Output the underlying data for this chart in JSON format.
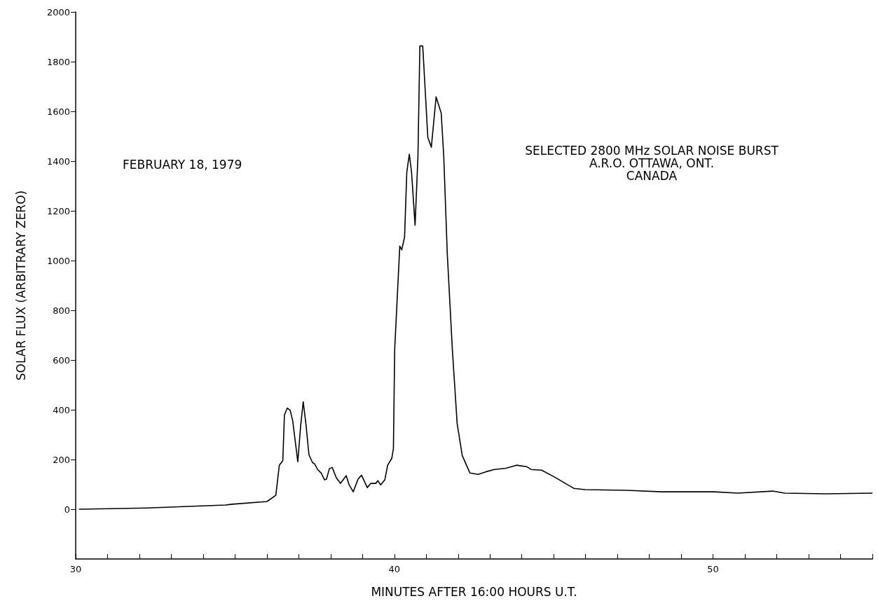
{
  "chart_data": {
    "type": "line",
    "xlabel": "MINUTES AFTER 16:00 HOURS U.T.",
    "ylabel": "SOLAR FLUX (ARBITRARY ZERO)",
    "annotations": [
      "FEBRUARY 18, 1979",
      "SELECTED 2800 MHz SOLAR NOISE BURST\nA.R.O. OTTAWA, ONT.\nCANADA"
    ],
    "xlim": [
      30,
      55
    ],
    "ylim": [
      -200,
      2000
    ],
    "xticks": [
      30,
      {
        "value": 31,
        "label": null
      },
      {
        "value": 32,
        "label": null
      },
      {
        "value": 33,
        "label": null
      },
      {
        "value": 34,
        "label": null
      },
      {
        "value": 35,
        "label": null
      },
      {
        "value": 36,
        "label": null
      },
      {
        "value": 37,
        "label": null
      },
      {
        "value": 38,
        "label": null
      },
      {
        "value": 39,
        "label": null
      },
      40,
      {
        "value": 41,
        "label": null
      },
      {
        "value": 42,
        "label": null
      },
      {
        "value": 43,
        "label": null
      },
      {
        "value": 44,
        "label": null
      },
      {
        "value": 45,
        "label": null
      },
      {
        "value": 46,
        "label": null
      },
      {
        "value": 47,
        "label": null
      },
      {
        "value": 48,
        "label": null
      },
      {
        "value": 49,
        "label": null
      },
      50,
      {
        "value": 51,
        "label": null
      },
      {
        "value": 52,
        "label": null
      },
      {
        "value": 53,
        "label": null
      },
      {
        "value": 54,
        "label": null
      },
      {
        "value": 55,
        "label": null
      }
    ],
    "yticks": [
      0,
      200,
      400,
      600,
      800,
      1000,
      1200,
      1400,
      1600,
      1800,
      2000
    ],
    "grid": false,
    "marker": "none",
    "line_style": "solid",
    "series": [
      {
        "color": "#000000",
        "x": [
          30.1,
          32.2,
          34.7,
          34.9,
          36.0,
          36.28,
          36.39,
          36.5,
          36.55,
          36.64,
          36.73,
          36.81,
          36.97,
          37.06,
          37.14,
          37.23,
          37.32,
          37.43,
          37.5,
          37.59,
          37.7,
          37.81,
          37.87,
          37.96,
          38.05,
          38.18,
          38.31,
          38.49,
          38.58,
          38.71,
          38.86,
          38.97,
          39.15,
          39.26,
          39.42,
          39.48,
          39.57,
          39.7,
          39.79,
          39.92,
          39.97,
          40.01,
          40.17,
          40.23,
          40.32,
          40.39,
          40.47,
          40.54,
          40.65,
          40.74,
          40.8,
          40.89,
          41.05,
          41.16,
          41.31,
          41.47,
          41.55,
          41.66,
          41.82,
          41.97,
          42.13,
          42.37,
          42.63,
          42.88,
          43.14,
          43.5,
          43.83,
          44.16,
          44.29,
          44.62,
          44.99,
          45.63,
          45.99,
          47.29,
          48.39,
          50.04,
          50.77,
          51.87,
          52.25,
          53.53,
          55.0
        ],
        "values": [
          0,
          5,
          17,
          20,
          31,
          56,
          177,
          196,
          379,
          407,
          398,
          356,
          191,
          337,
          432,
          337,
          219,
          188,
          182,
          160,
          146,
          118,
          121,
          163,
          168,
          126,
          104,
          135,
          98,
          70,
          121,
          137,
          87,
          104,
          104,
          115,
          98,
          118,
          177,
          205,
          244,
          642,
          1058,
          1043,
          1094,
          1355,
          1428,
          1355,
          1142,
          1419,
          1863,
          1863,
          1495,
          1456,
          1658,
          1593,
          1419,
          1029,
          642,
          345,
          216,
          146,
          140,
          151,
          160,
          165,
          177,
          171,
          160,
          157,
          132,
          84,
          79,
          76,
          70,
          70,
          65,
          73,
          65,
          62,
          65
        ]
      }
    ]
  }
}
